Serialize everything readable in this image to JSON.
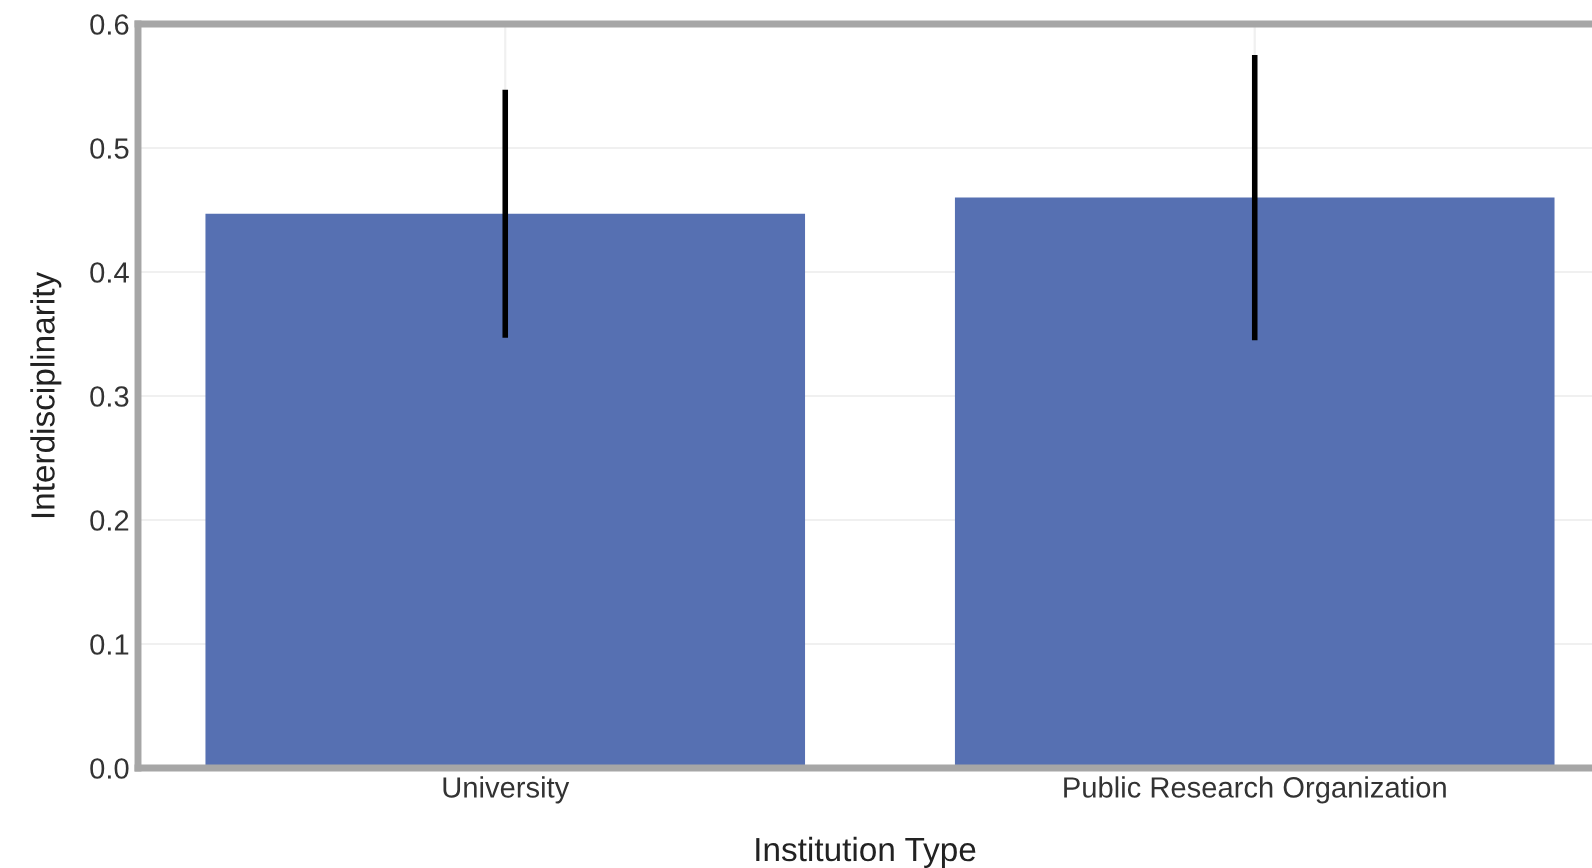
{
  "chart_data": {
    "type": "bar",
    "xlabel": "Institution Type",
    "ylabel": "Interdisciplinarity",
    "categories": [
      "University",
      "Public Research Organization"
    ],
    "values": [
      0.447,
      0.46
    ],
    "errors": [
      0.1,
      0.115
    ],
    "color": "#5670b2",
    "ylim": [
      0,
      0.6
    ],
    "yticks": [
      {
        "value": 0,
        "label": "0.0"
      },
      0.1,
      0.2,
      0.3,
      0.4,
      0.5,
      0.6
    ],
    "grid": true
  }
}
